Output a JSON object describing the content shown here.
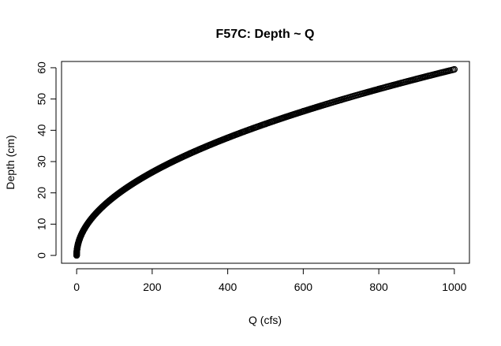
{
  "chart_data": {
    "type": "scatter",
    "title": "F57C: Depth ~ Q",
    "xlabel": "Q (cfs)",
    "ylabel": "Depth (cm)",
    "xlim": [
      -40,
      1040
    ],
    "ylim": [
      -2.5,
      62
    ],
    "xticks": [
      0,
      200,
      400,
      600,
      800,
      1000
    ],
    "yticks": [
      0,
      10,
      20,
      30,
      40,
      50,
      60
    ],
    "grid": false,
    "legend": "none",
    "marker": "open-circle",
    "curve": {
      "form": "power",
      "coefficient": 1.88,
      "exponent": 0.5,
      "x_range": [
        0,
        1000
      ]
    },
    "series": [
      {
        "x": [
          0,
          0.5,
          1,
          2,
          4,
          8,
          15,
          25,
          50,
          100,
          200,
          300,
          400,
          500,
          600,
          700,
          800,
          900,
          1000
        ],
        "y": [
          0,
          1.3,
          1.9,
          2.7,
          3.8,
          5.3,
          7.3,
          9.4,
          13.3,
          18.8,
          26.6,
          32.6,
          37.6,
          42.0,
          46.1,
          49.7,
          53.2,
          56.4,
          59.5
        ]
      }
    ]
  },
  "colors": {
    "points": "#000000",
    "axes": "#000000",
    "background": "#ffffff"
  }
}
